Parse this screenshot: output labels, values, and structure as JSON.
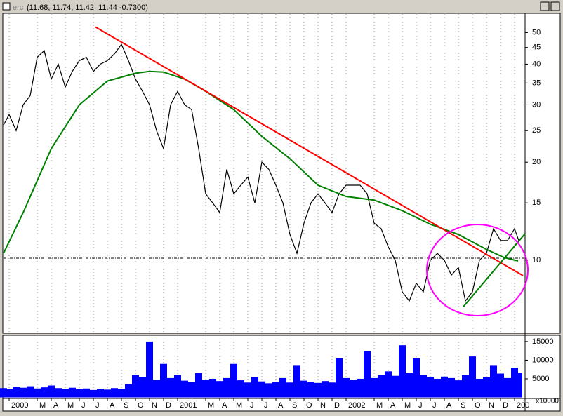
{
  "window": {
    "name": "erc",
    "quote": "(11.68, 11.74, 11.42, 11.44 -0.7300)"
  },
  "chart_data": [
    {
      "type": "line",
      "log_scale": true,
      "grid": true,
      "xlim": [
        -0.4,
        36.75
      ],
      "ylim": [
        6,
        57
      ],
      "yticks": [
        10,
        15,
        20,
        25,
        30,
        35,
        40,
        45,
        50
      ],
      "series": [
        {
          "name": "Price",
          "color": "#000000",
          "x": [
            -0.4,
            0,
            0.5,
            1,
            1.5,
            2,
            2.5,
            3,
            3.5,
            4,
            4.5,
            5,
            5.5,
            6,
            6.5,
            7,
            7.5,
            8,
            8.5,
            9,
            9.5,
            10,
            10.5,
            11,
            11.5,
            12,
            12.5,
            13,
            13.5,
            14,
            14.5,
            15,
            15.5,
            16,
            16.5,
            17,
            17.5,
            18,
            18.5,
            19,
            19.5,
            20,
            20.5,
            21,
            21.5,
            22,
            22.5,
            23,
            23.5,
            24,
            24.5,
            25,
            25.5,
            26,
            26.5,
            27,
            27.5,
            28,
            28.5,
            29,
            29.5,
            30,
            30.5,
            31,
            31.5,
            32,
            32.5,
            33,
            33.5,
            34,
            34.5,
            35,
            35.5,
            36,
            36.3
          ],
          "values": [
            26,
            28,
            25,
            30,
            32,
            42,
            44,
            36,
            40,
            34,
            38,
            41,
            42,
            38,
            40,
            41,
            43,
            46,
            41,
            36,
            33,
            30,
            25,
            22,
            30,
            33,
            30,
            29,
            22,
            16,
            15,
            14,
            19,
            16,
            17,
            18,
            15,
            20,
            19,
            17,
            15,
            12,
            10.5,
            13,
            15,
            16,
            15,
            14,
            16,
            17,
            17,
            17,
            16,
            13,
            12.5,
            11,
            10,
            8,
            7.5,
            8.5,
            8,
            10,
            10.5,
            10,
            9,
            9.5,
            7.5,
            8,
            10,
            10.5,
            12.5,
            11.5,
            11.5,
            12.5,
            11.5
          ]
        },
        {
          "name": "Moving Average",
          "color": "#008000",
          "x": [
            -0.4,
            1,
            3,
            5,
            7,
            9,
            10,
            11,
            12.5,
            14,
            16,
            18,
            20,
            22,
            24,
            26,
            28,
            30,
            32,
            34,
            35.25,
            36.25
          ],
          "values": [
            10.5,
            14,
            22,
            30,
            35.5,
            37.5,
            38,
            37.8,
            36,
            33,
            29,
            24,
            20.5,
            17,
            15.7,
            15.3,
            14.2,
            12.9,
            12,
            10.8,
            10.2,
            9.95
          ]
        }
      ],
      "trendlines": [
        {
          "color": "#ff0000",
          "x": [
            6.15,
            36.6
          ],
          "values": [
            52,
            8.97
          ]
        },
        {
          "color": "#008000",
          "x": [
            32.35,
            36.75
          ],
          "values": [
            7.2,
            12.07
          ]
        }
      ],
      "hline": 10.15
    },
    {
      "type": "bar",
      "grid": true,
      "color": "#0000ff",
      "xlim": [
        -0.4,
        36.75
      ],
      "ylim": [
        0,
        16300
      ],
      "yticks": [
        5000,
        10000,
        15000
      ],
      "y_unit_label": "x10000",
      "xticks": [
        {
          "value": 0,
          "label": "2000"
        },
        {
          "value": 2,
          "label": "M"
        },
        {
          "value": 3,
          "label": "A"
        },
        {
          "value": 4,
          "label": "M"
        },
        {
          "value": 5,
          "label": "J"
        },
        {
          "value": 6,
          "label": "J"
        },
        {
          "value": 7,
          "label": "A"
        },
        {
          "value": 8,
          "label": "S"
        },
        {
          "value": 9,
          "label": "O"
        },
        {
          "value": 10,
          "label": "N"
        },
        {
          "value": 11,
          "label": "D"
        },
        {
          "value": 12,
          "label": "2001"
        },
        {
          "value": 14,
          "label": "M"
        },
        {
          "value": 15,
          "label": "A"
        },
        {
          "value": 16,
          "label": "M"
        },
        {
          "value": 17,
          "label": "J"
        },
        {
          "value": 18,
          "label": "J"
        },
        {
          "value": 19,
          "label": "A"
        },
        {
          "value": 20,
          "label": "S"
        },
        {
          "value": 21,
          "label": "O"
        },
        {
          "value": 22,
          "label": "N"
        },
        {
          "value": 23,
          "label": "D"
        },
        {
          "value": 24,
          "label": "2002"
        },
        {
          "value": 26,
          "label": "M"
        },
        {
          "value": 27,
          "label": "A"
        },
        {
          "value": 28,
          "label": "M"
        },
        {
          "value": 29,
          "label": "J"
        },
        {
          "value": 30,
          "label": "J"
        },
        {
          "value": 31,
          "label": "A"
        },
        {
          "value": 32,
          "label": "S"
        },
        {
          "value": 33,
          "label": "O"
        },
        {
          "value": 34,
          "label": "N"
        },
        {
          "value": 35,
          "label": "D"
        },
        {
          "value": 36,
          "label": "200"
        }
      ],
      "x": [
        -0.4,
        0,
        0.5,
        1,
        1.5,
        2,
        2.5,
        3,
        3.5,
        4,
        4.5,
        5,
        5.5,
        6,
        6.5,
        7,
        7.5,
        8,
        8.5,
        9,
        9.5,
        10,
        10.5,
        11,
        11.5,
        12,
        12.5,
        13,
        13.5,
        14,
        14.5,
        15,
        15.5,
        16,
        16.5,
        17,
        17.5,
        18,
        18.5,
        19,
        19.5,
        20,
        20.5,
        21,
        21.5,
        22,
        22.5,
        23,
        23.5,
        24,
        24.5,
        25,
        25.5,
        26,
        26.5,
        27,
        27.5,
        28,
        28.5,
        29,
        29.5,
        30,
        30.5,
        31,
        31.5,
        32,
        32.5,
        33,
        33.5,
        34,
        34.5,
        35,
        35.5,
        36,
        36.3
      ],
      "values": [
        2500,
        2200,
        2800,
        2600,
        3000,
        2400,
        2700,
        3200,
        2500,
        2300,
        2600,
        2200,
        2400,
        2000,
        2300,
        2100,
        2500,
        2300,
        3500,
        6000,
        5500,
        15000,
        4800,
        9000,
        5200,
        6000,
        4500,
        4200,
        6500,
        4800,
        5000,
        4400,
        5200,
        9000,
        4600,
        4000,
        5500,
        4300,
        3800,
        4200,
        5200,
        4000,
        8500,
        4500,
        4100,
        3900,
        4400,
        4000,
        10500,
        5200,
        4800,
        5000,
        12500,
        5200,
        6000,
        7000,
        5800,
        14000,
        6500,
        10500,
        6000,
        5500,
        5000,
        5600,
        5200,
        4600,
        6000,
        11000,
        5000,
        5400,
        8500,
        6400,
        5200,
        8000,
        6500
      ]
    }
  ]
}
